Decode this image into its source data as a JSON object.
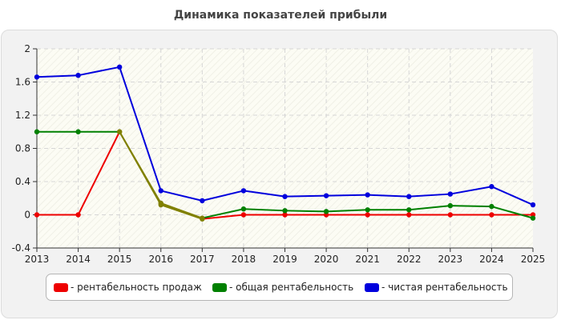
{
  "chart_data": {
    "type": "line",
    "title": "Динамика показателей прибыли",
    "xlabel": "",
    "ylabel": "",
    "x": [
      "2013",
      "2014",
      "2015",
      "2016",
      "2017",
      "2018",
      "2019",
      "2020",
      "2021",
      "2022",
      "2023",
      "2024",
      "2025"
    ],
    "ylim": [
      -0.4,
      2
    ],
    "yticks": [
      "-0.4",
      "0",
      "0.4",
      "0.8",
      "1.2",
      "1.6",
      "2"
    ],
    "grid": true,
    "legend_position": "bottom",
    "series": [
      {
        "name": "- рентабельность продаж",
        "color": "#ee0000",
        "values": [
          0,
          0,
          1.0,
          0.12,
          -0.05,
          0,
          0,
          0,
          0,
          0,
          0,
          0,
          0
        ]
      },
      {
        "name": "- общая рентабельность",
        "color": "#008000",
        "values": [
          1.0,
          1.0,
          1.0,
          0.14,
          -0.04,
          0.07,
          0.05,
          0.04,
          0.06,
          0.06,
          0.11,
          0.1,
          -0.04
        ]
      },
      {
        "name": "- чистая рентабельность",
        "color": "#0000dd",
        "values": [
          1.66,
          1.68,
          1.78,
          0.29,
          0.17,
          0.29,
          0.22,
          0.23,
          0.24,
          0.22,
          0.25,
          0.34,
          0.12
        ]
      }
    ],
    "overlap_color": "#808000"
  }
}
